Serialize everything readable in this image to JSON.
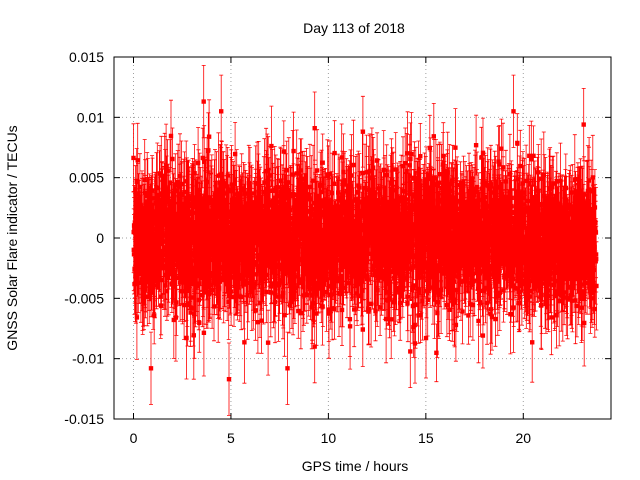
{
  "chart_data": {
    "type": "scatter",
    "title": "Day 113 of 2018",
    "xlabel": "GPS time / hours",
    "ylabel": "GNSS Solar Flare indicator / TECUs",
    "xlim": [
      -1,
      24.5
    ],
    "ylim": [
      -0.015,
      0.015
    ],
    "xticks": [
      0,
      5,
      10,
      15,
      20
    ],
    "xtick_labels": [
      "0",
      "5",
      "10",
      "15",
      "20"
    ],
    "yticks": [
      -0.015,
      -0.01,
      -0.005,
      0,
      0.005,
      0.01,
      0.015
    ],
    "ytick_labels": [
      "-0.015",
      "-0.01",
      "-0.005",
      "0",
      "0.005",
      "0.01",
      "0.015"
    ],
    "grid": true,
    "series": [
      {
        "name": "GNSS Solar Flare indicator",
        "color": "#ff0000",
        "marker": "square",
        "error_bars": true,
        "x_range": [
          0,
          23.75
        ],
        "sample_interval_hours": 0.0083,
        "point_count": 2880,
        "typical_error": 0.003,
        "mean": 0.0,
        "bulk_range": [
          -0.006,
          0.006
        ],
        "notable_points": [
          {
            "x": 3.6,
            "y": 0.0113
          },
          {
            "x": 4.5,
            "y": 0.0105
          },
          {
            "x": 4.9,
            "y": -0.0117
          },
          {
            "x": 9.3,
            "y": 0.0091
          },
          {
            "x": 9.3,
            "y": -0.009
          },
          {
            "x": 14.2,
            "y": -0.0094
          },
          {
            "x": 19.5,
            "y": 0.0105
          },
          {
            "x": 23.1,
            "y": 0.0094
          },
          {
            "x": 0.9,
            "y": -0.0108
          },
          {
            "x": 7.9,
            "y": -0.0108
          }
        ]
      }
    ]
  }
}
